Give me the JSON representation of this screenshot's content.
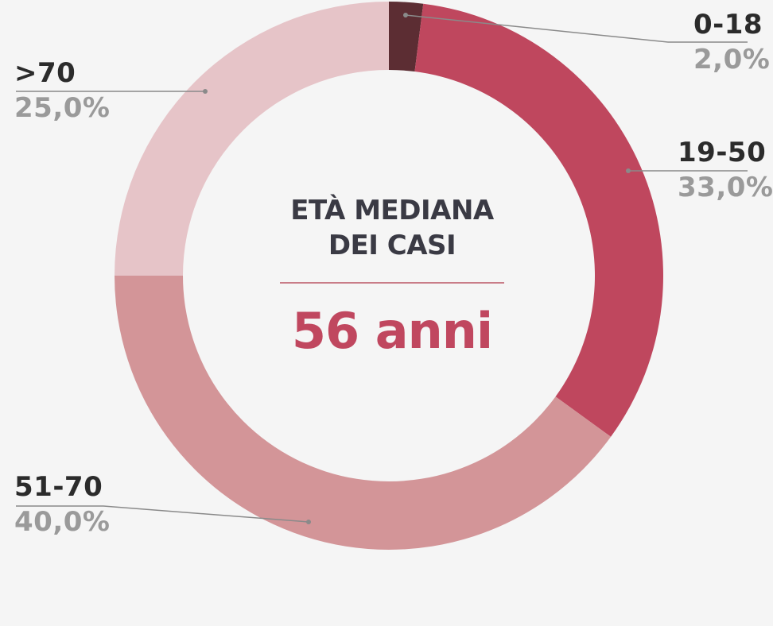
{
  "chart_data": {
    "type": "pie",
    "categories": [
      "0-18",
      "19-50",
      "51-70",
      ">70"
    ],
    "values": [
      2.0,
      33.0,
      40.0,
      25.0
    ],
    "value_labels": [
      "2,0%",
      "33,0%",
      "40,0%",
      "25,0%"
    ],
    "colors": [
      "#5c2d33",
      "#bf475e",
      "#d39598",
      "#e6c4c8"
    ],
    "center_title_line1": "ETÀ MEDIANA",
    "center_title_line2": "DEI CASI",
    "center_value": "56 anni",
    "legend": "none"
  }
}
